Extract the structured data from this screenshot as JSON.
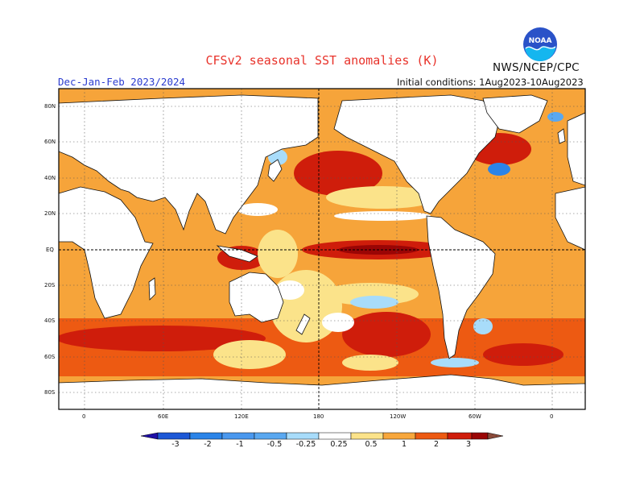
{
  "header": {
    "title": "CFSv2 seasonal SST anomalies (K)",
    "agency": "NWS/NCEP/CPC",
    "logo_text": "NOAA",
    "season": "Dec-Jan-Feb 2023/2024",
    "initial_conditions": "Initial conditions:  1Aug2023-10Aug2023"
  },
  "map": {
    "projection": "cylindrical equidistant",
    "center_longitude": "180",
    "lat_labels": [
      "80N",
      "60N",
      "40N",
      "20N",
      "EQ",
      "20S",
      "40S",
      "60S",
      "80S"
    ],
    "lon_labels": [
      "0",
      "60E",
      "120E",
      "180",
      "120W",
      "60W",
      "0"
    ],
    "reference_lines": [
      "Equator",
      "Date line 180"
    ],
    "grid": "dotted gridlines"
  },
  "colorbar": {
    "labels": [
      "-3",
      "-2",
      "-1",
      "-0.5",
      "-0.25",
      "0.25",
      "0.5",
      "1",
      "2",
      "3"
    ],
    "colors": [
      "#1e0fa6",
      "#1d58d6",
      "#2b84e8",
      "#5aa8f0",
      "#a8dcfa",
      "#ffffff",
      "#fbe38a",
      "#f7a73c",
      "#ed5a12",
      "#cf1d0b",
      "#9a0505",
      "#8a4a3a"
    ],
    "orientation": "horizontal, arrowed ends"
  },
  "colors": {
    "land": "#ffffff",
    "title": "#e8322a",
    "season_text": "#2b3ccf"
  }
}
